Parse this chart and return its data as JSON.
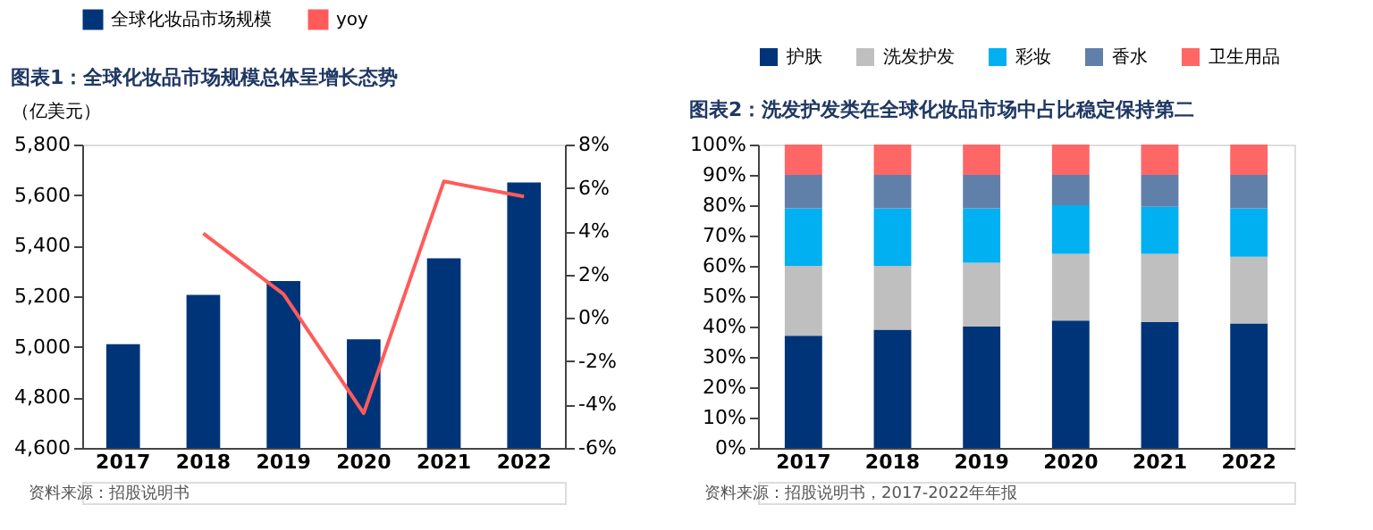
{
  "chart_data": [
    {
      "type": "bar",
      "title": "图表1：全球化妆品市场规模总体呈增长态势",
      "ylabel": "（亿美元）",
      "categories": [
        "2017",
        "2018",
        "2019",
        "2020",
        "2021",
        "2022"
      ],
      "series": [
        {
          "name": "全球化妆品市场规模",
          "color": "#003478",
          "values": [
            5010,
            5205,
            5260,
            5030,
            5350,
            5650
          ]
        },
        {
          "name": "yoy",
          "type": "line",
          "axis": "y2",
          "color": "#ff5b5b",
          "values": [
            null,
            3.9,
            1.1,
            -4.4,
            6.3,
            5.6
          ]
        }
      ],
      "ylim": [
        4600,
        5800
      ],
      "yticks": [
        {
          "value": 4600,
          "label": "4,600"
        },
        {
          "value": 4800,
          "label": "4,800"
        },
        {
          "value": 5000,
          "label": "5,000"
        },
        {
          "value": 5200,
          "label": "5,200"
        },
        {
          "value": 5400,
          "label": "5,400"
        },
        {
          "value": 5600,
          "label": "5,600"
        },
        {
          "value": 5800,
          "label": "5,800"
        }
      ],
      "y2lim": [
        -6,
        8
      ],
      "y2ticks": [
        {
          "value": -6,
          "label": "-6%"
        },
        {
          "value": -4,
          "label": "-4%"
        },
        {
          "value": -2,
          "label": "-2%"
        },
        {
          "value": 0,
          "label": "0%"
        },
        {
          "value": 2,
          "label": "2%"
        },
        {
          "value": 4,
          "label": "4%"
        },
        {
          "value": 6,
          "label": "6%"
        },
        {
          "value": 8,
          "label": "8%"
        }
      ],
      "grid": false,
      "legend": "top",
      "annotations": [
        "资料来源：招股说明书"
      ]
    },
    {
      "type": "bar",
      "title": "图表2：洗发护发类在全球化妆品市场中占比稳定保持第二",
      "stacked": true,
      "categories": [
        "2017",
        "2018",
        "2019",
        "2020",
        "2021",
        "2022"
      ],
      "series": [
        {
          "name": "护肤",
          "color": "#003478",
          "values": [
            37,
            39,
            40,
            42,
            41.5,
            41
          ]
        },
        {
          "name": "洗发护发",
          "color": "#bfbfbf",
          "values": [
            23,
            21,
            21,
            22,
            22.5,
            22
          ]
        },
        {
          "name": "彩妆",
          "color": "#00b0f0",
          "values": [
            19,
            19,
            18,
            16,
            15.5,
            16
          ]
        },
        {
          "name": "香水",
          "color": "#6080aa",
          "values": [
            11,
            11,
            11,
            10,
            10.5,
            11
          ]
        },
        {
          "name": "卫生用品",
          "color": "#ff6666",
          "values": [
            10,
            10,
            10,
            10,
            10,
            10
          ]
        }
      ],
      "ylim": [
        0,
        100
      ],
      "yticks": [
        {
          "value": 0,
          "label": "0%"
        },
        {
          "value": 10,
          "label": "10%"
        },
        {
          "value": 20,
          "label": "20%"
        },
        {
          "value": 30,
          "label": "30%"
        },
        {
          "value": 40,
          "label": "40%"
        },
        {
          "value": 50,
          "label": "50%"
        },
        {
          "value": 60,
          "label": "60%"
        },
        {
          "value": 70,
          "label": "70%"
        },
        {
          "value": 80,
          "label": "80%"
        },
        {
          "value": 90,
          "label": "90%"
        },
        {
          "value": 100,
          "label": "100%"
        }
      ],
      "grid": false,
      "legend": "top",
      "annotations": [
        "资料来源：招股说明书，2017-2022年年报"
      ]
    }
  ]
}
